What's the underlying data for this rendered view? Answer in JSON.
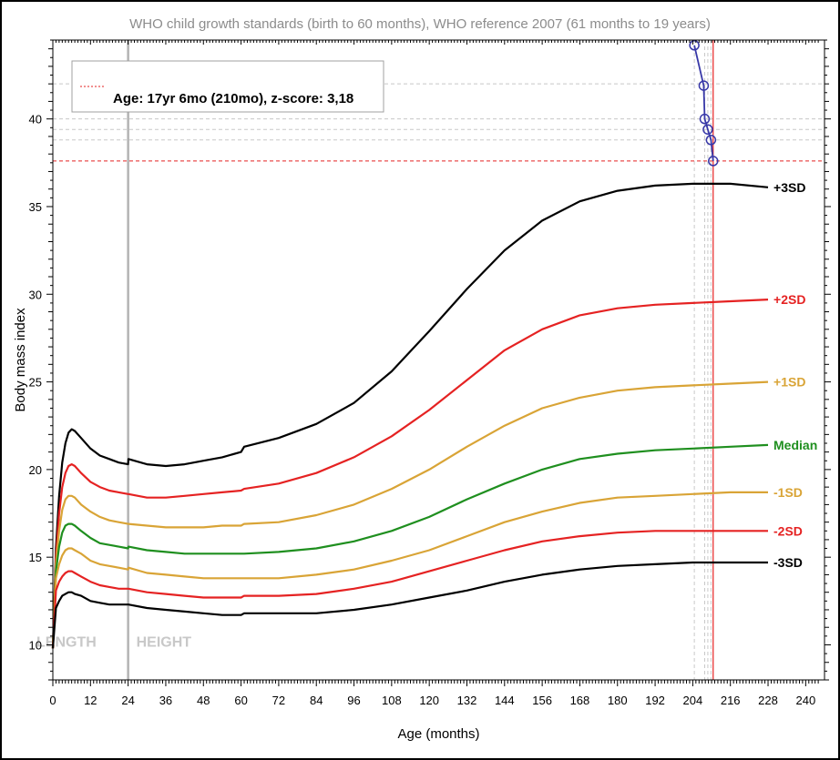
{
  "chart_data": {
    "type": "line",
    "title": "WHO child growth standards (birth to 60 months), WHO reference 2007 (61 months to 19 years)",
    "xlabel": "Age (months)",
    "ylabel": "Body mass index",
    "xlim": [
      0,
      246
    ],
    "ylim": [
      8.0,
      44.5
    ],
    "x_ticks": [
      0,
      12,
      24,
      36,
      48,
      60,
      72,
      84,
      96,
      108,
      120,
      132,
      144,
      156,
      168,
      180,
      192,
      204,
      216,
      228,
      240
    ],
    "y_ticks": [
      10,
      15,
      20,
      25,
      30,
      35,
      40
    ],
    "sections": [
      {
        "label": "LENGTH",
        "x": 0
      },
      {
        "label": "HEIGHT",
        "x": 24
      }
    ],
    "divider_x": 24,
    "series": [
      {
        "name": "+3SD",
        "color": "#000000",
        "points": [
          [
            0,
            9.8
          ],
          [
            1,
            15.5
          ],
          [
            2,
            18.5
          ],
          [
            3,
            20.4
          ],
          [
            4,
            21.5
          ],
          [
            5,
            22.1
          ],
          [
            6,
            22.3
          ],
          [
            7,
            22.2
          ],
          [
            9,
            21.8
          ],
          [
            12,
            21.2
          ],
          [
            15,
            20.8
          ],
          [
            18,
            20.6
          ],
          [
            21,
            20.4
          ],
          [
            24,
            20.3
          ],
          [
            24.1,
            20.6
          ],
          [
            30,
            20.3
          ],
          [
            36,
            20.2
          ],
          [
            42,
            20.3
          ],
          [
            48,
            20.5
          ],
          [
            54,
            20.7
          ],
          [
            60,
            21.0
          ],
          [
            61,
            21.3
          ],
          [
            72,
            21.8
          ],
          [
            84,
            22.6
          ],
          [
            96,
            23.8
          ],
          [
            108,
            25.6
          ],
          [
            120,
            27.9
          ],
          [
            132,
            30.3
          ],
          [
            144,
            32.5
          ],
          [
            156,
            34.2
          ],
          [
            168,
            35.3
          ],
          [
            180,
            35.9
          ],
          [
            192,
            36.2
          ],
          [
            204,
            36.3
          ],
          [
            216,
            36.3
          ],
          [
            228,
            36.1
          ]
        ]
      },
      {
        "name": "+2SD",
        "color": "#e52222",
        "points": [
          [
            0,
            9.8
          ],
          [
            1,
            15.0
          ],
          [
            2,
            17.5
          ],
          [
            3,
            19.0
          ],
          [
            4,
            19.8
          ],
          [
            5,
            20.2
          ],
          [
            6,
            20.3
          ],
          [
            7,
            20.2
          ],
          [
            9,
            19.8
          ],
          [
            12,
            19.3
          ],
          [
            15,
            19.0
          ],
          [
            18,
            18.8
          ],
          [
            21,
            18.7
          ],
          [
            24,
            18.6
          ],
          [
            24.1,
            18.6
          ],
          [
            30,
            18.4
          ],
          [
            36,
            18.4
          ],
          [
            42,
            18.5
          ],
          [
            48,
            18.6
          ],
          [
            54,
            18.7
          ],
          [
            60,
            18.8
          ],
          [
            61,
            18.9
          ],
          [
            72,
            19.2
          ],
          [
            84,
            19.8
          ],
          [
            96,
            20.7
          ],
          [
            108,
            21.9
          ],
          [
            120,
            23.4
          ],
          [
            132,
            25.1
          ],
          [
            144,
            26.8
          ],
          [
            156,
            28.0
          ],
          [
            168,
            28.8
          ],
          [
            180,
            29.2
          ],
          [
            192,
            29.4
          ],
          [
            204,
            29.5
          ],
          [
            216,
            29.6
          ],
          [
            228,
            29.7
          ]
        ]
      },
      {
        "name": "+1SD",
        "color": "#d9a436",
        "points": [
          [
            0,
            9.8
          ],
          [
            1,
            14.6
          ],
          [
            2,
            16.5
          ],
          [
            3,
            17.7
          ],
          [
            4,
            18.3
          ],
          [
            5,
            18.5
          ],
          [
            6,
            18.5
          ],
          [
            7,
            18.4
          ],
          [
            9,
            18.0
          ],
          [
            12,
            17.6
          ],
          [
            15,
            17.3
          ],
          [
            18,
            17.1
          ],
          [
            21,
            17.0
          ],
          [
            24,
            16.9
          ],
          [
            24.1,
            16.9
          ],
          [
            30,
            16.8
          ],
          [
            36,
            16.7
          ],
          [
            42,
            16.7
          ],
          [
            48,
            16.7
          ],
          [
            54,
            16.8
          ],
          [
            60,
            16.8
          ],
          [
            61,
            16.9
          ],
          [
            72,
            17.0
          ],
          [
            84,
            17.4
          ],
          [
            96,
            18.0
          ],
          [
            108,
            18.9
          ],
          [
            120,
            20.0
          ],
          [
            132,
            21.3
          ],
          [
            144,
            22.5
          ],
          [
            156,
            23.5
          ],
          [
            168,
            24.1
          ],
          [
            180,
            24.5
          ],
          [
            192,
            24.7
          ],
          [
            204,
            24.8
          ],
          [
            216,
            24.9
          ],
          [
            228,
            25.0
          ]
        ]
      },
      {
        "name": "Median",
        "color": "#1f8f1f",
        "points": [
          [
            0,
            9.8
          ],
          [
            1,
            14.2
          ],
          [
            2,
            15.6
          ],
          [
            3,
            16.4
          ],
          [
            4,
            16.8
          ],
          [
            5,
            16.9
          ],
          [
            6,
            16.9
          ],
          [
            7,
            16.8
          ],
          [
            9,
            16.5
          ],
          [
            12,
            16.1
          ],
          [
            15,
            15.8
          ],
          [
            18,
            15.7
          ],
          [
            21,
            15.6
          ],
          [
            24,
            15.5
          ],
          [
            24.1,
            15.6
          ],
          [
            30,
            15.4
          ],
          [
            36,
            15.3
          ],
          [
            42,
            15.2
          ],
          [
            48,
            15.2
          ],
          [
            54,
            15.2
          ],
          [
            60,
            15.2
          ],
          [
            61,
            15.2
          ],
          [
            72,
            15.3
          ],
          [
            84,
            15.5
          ],
          [
            96,
            15.9
          ],
          [
            108,
            16.5
          ],
          [
            120,
            17.3
          ],
          [
            132,
            18.3
          ],
          [
            144,
            19.2
          ],
          [
            156,
            20.0
          ],
          [
            168,
            20.6
          ],
          [
            180,
            20.9
          ],
          [
            192,
            21.1
          ],
          [
            204,
            21.2
          ],
          [
            216,
            21.3
          ],
          [
            228,
            21.4
          ]
        ]
      },
      {
        "name": "-1SD",
        "color": "#d9a436",
        "points": [
          [
            0,
            9.8
          ],
          [
            1,
            13.8
          ],
          [
            2,
            14.6
          ],
          [
            3,
            15.1
          ],
          [
            4,
            15.4
          ],
          [
            5,
            15.5
          ],
          [
            6,
            15.5
          ],
          [
            7,
            15.4
          ],
          [
            9,
            15.2
          ],
          [
            12,
            14.8
          ],
          [
            15,
            14.6
          ],
          [
            18,
            14.5
          ],
          [
            21,
            14.4
          ],
          [
            24,
            14.3
          ],
          [
            24.1,
            14.4
          ],
          [
            30,
            14.1
          ],
          [
            36,
            14.0
          ],
          [
            42,
            13.9
          ],
          [
            48,
            13.8
          ],
          [
            54,
            13.8
          ],
          [
            60,
            13.8
          ],
          [
            61,
            13.8
          ],
          [
            72,
            13.8
          ],
          [
            84,
            14.0
          ],
          [
            96,
            14.3
          ],
          [
            108,
            14.8
          ],
          [
            120,
            15.4
          ],
          [
            132,
            16.2
          ],
          [
            144,
            17.0
          ],
          [
            156,
            17.6
          ],
          [
            168,
            18.1
          ],
          [
            180,
            18.4
          ],
          [
            192,
            18.5
          ],
          [
            204,
            18.6
          ],
          [
            216,
            18.7
          ],
          [
            228,
            18.7
          ]
        ]
      },
      {
        "name": "-2SD",
        "color": "#e52222",
        "points": [
          [
            0,
            9.8
          ],
          [
            1,
            13.1
          ],
          [
            2,
            13.6
          ],
          [
            3,
            13.9
          ],
          [
            4,
            14.1
          ],
          [
            5,
            14.2
          ],
          [
            6,
            14.2
          ],
          [
            7,
            14.1
          ],
          [
            9,
            13.9
          ],
          [
            12,
            13.6
          ],
          [
            15,
            13.4
          ],
          [
            18,
            13.3
          ],
          [
            21,
            13.2
          ],
          [
            24,
            13.2
          ],
          [
            24.1,
            13.2
          ],
          [
            30,
            13.0
          ],
          [
            36,
            12.9
          ],
          [
            42,
            12.8
          ],
          [
            48,
            12.7
          ],
          [
            54,
            12.7
          ],
          [
            60,
            12.7
          ],
          [
            61,
            12.8
          ],
          [
            72,
            12.8
          ],
          [
            84,
            12.9
          ],
          [
            96,
            13.2
          ],
          [
            108,
            13.6
          ],
          [
            120,
            14.2
          ],
          [
            132,
            14.8
          ],
          [
            144,
            15.4
          ],
          [
            156,
            15.9
          ],
          [
            168,
            16.2
          ],
          [
            180,
            16.4
          ],
          [
            192,
            16.5
          ],
          [
            204,
            16.5
          ],
          [
            216,
            16.5
          ],
          [
            228,
            16.5
          ]
        ]
      },
      {
        "name": "-3SD",
        "color": "#000000",
        "points": [
          [
            0,
            9.8
          ],
          [
            1,
            12.1
          ],
          [
            2,
            12.5
          ],
          [
            3,
            12.8
          ],
          [
            4,
            12.9
          ],
          [
            5,
            13.0
          ],
          [
            6,
            13.0
          ],
          [
            7,
            12.9
          ],
          [
            9,
            12.8
          ],
          [
            12,
            12.5
          ],
          [
            15,
            12.4
          ],
          [
            18,
            12.3
          ],
          [
            21,
            12.3
          ],
          [
            24,
            12.3
          ],
          [
            24.1,
            12.3
          ],
          [
            30,
            12.1
          ],
          [
            36,
            12.0
          ],
          [
            42,
            11.9
          ],
          [
            48,
            11.8
          ],
          [
            54,
            11.7
          ],
          [
            60,
            11.7
          ],
          [
            61,
            11.8
          ],
          [
            72,
            11.8
          ],
          [
            84,
            11.8
          ],
          [
            96,
            12.0
          ],
          [
            108,
            12.3
          ],
          [
            120,
            12.7
          ],
          [
            132,
            13.1
          ],
          [
            144,
            13.6
          ],
          [
            156,
            14.0
          ],
          [
            168,
            14.3
          ],
          [
            180,
            14.5
          ],
          [
            192,
            14.6
          ],
          [
            204,
            14.7
          ],
          [
            216,
            14.7
          ],
          [
            228,
            14.7
          ]
        ]
      }
    ],
    "patient": {
      "color": "#3838a8",
      "points": [
        [
          204.5,
          44.2
        ],
        [
          207.5,
          41.9
        ],
        [
          207.8,
          40.0
        ],
        [
          208.8,
          39.4
        ],
        [
          209.8,
          38.8
        ],
        [
          210.5,
          37.6
        ]
      ]
    },
    "selected": {
      "x": 210.5,
      "y": 37.6,
      "color": "#e52222"
    },
    "reference_lines_y": [
      42.0,
      40.0,
      39.4,
      38.8
    ],
    "reference_lines_x": [
      204.5,
      207.8,
      208.8,
      209.8
    ],
    "legend": {
      "text": "Age: 17yr 6mo (210mo), z-score: 3,18",
      "placement": "top-left"
    }
  }
}
